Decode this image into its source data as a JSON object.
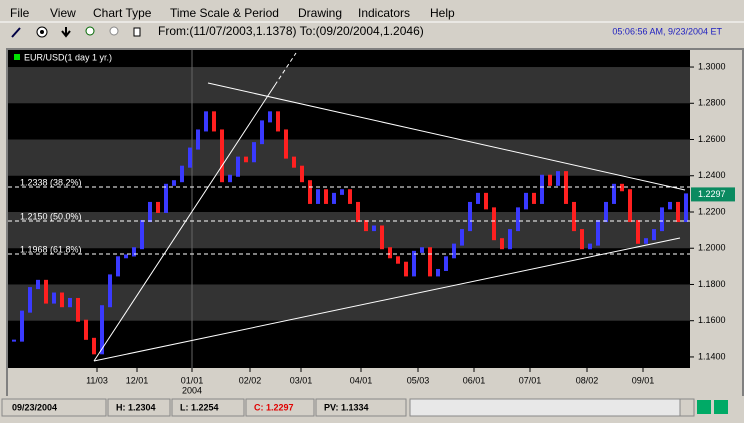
{
  "menu": [
    "File",
    "View",
    "Chart Type",
    "Time Scale & Period",
    "Drawing",
    "Indicators",
    "Help"
  ],
  "toolbar": {
    "range": "From:(11/07/2003,1.1378) To:(09/20/2004,1.2046)",
    "clock": "05:06:56 AM, 9/23/2004 ET"
  },
  "status": {
    "date": "09/23/2004",
    "high": "H: 1.2304",
    "low": "L: 1.2254",
    "close": "C: 1.2297",
    "pv": "PV: 1.1334"
  },
  "chart_data": {
    "type": "candlestick",
    "legend": "EUR/USD(1 day  1 yr.)",
    "up_color": "#3a3aff",
    "down_color": "#ff2020",
    "values": [
      1.149,
      1.165,
      1.178,
      1.182,
      1.17,
      1.175,
      1.168,
      1.172,
      1.16,
      1.15,
      1.142,
      1.168,
      1.185,
      1.195,
      1.196,
      1.2,
      1.215,
      1.225,
      1.22,
      1.235,
      1.237,
      1.245,
      1.255,
      1.265,
      1.275,
      1.265,
      1.237,
      1.24,
      1.25,
      1.248,
      1.258,
      1.27,
      1.275,
      1.265,
      1.25,
      1.245,
      1.237,
      1.225,
      1.232,
      1.225,
      1.23,
      1.232,
      1.225,
      1.215,
      1.21,
      1.212,
      1.2,
      1.195,
      1.192,
      1.185,
      1.198,
      1.2,
      1.185,
      1.188,
      1.195,
      1.202,
      1.21,
      1.225,
      1.23,
      1.222,
      1.205,
      1.2,
      1.21,
      1.222,
      1.23,
      1.225,
      1.24,
      1.235,
      1.242,
      1.225,
      1.21,
      1.2,
      1.202,
      1.215,
      1.225,
      1.235,
      1.232,
      1.215,
      1.203,
      1.205,
      1.21,
      1.222,
      1.225,
      1.215,
      1.2297
    ],
    "xlim": [
      -0.75,
      84.5
    ],
    "ylim": [
      1.1339,
      1.3094
    ],
    "yticks": [
      {
        "value": 1.3,
        "label": "1.3000"
      },
      {
        "value": 1.28,
        "label": "1.2800"
      },
      {
        "value": 1.26,
        "label": "1.2600"
      },
      {
        "value": 1.24,
        "label": "1.2400"
      },
      {
        "value": 1.22,
        "label": "1.2200"
      },
      {
        "value": 1.2,
        "label": "1.2000"
      },
      {
        "value": 1.18,
        "label": "1.1800"
      },
      {
        "value": 1.16,
        "label": "1.1600"
      },
      {
        "value": 1.14,
        "label": "1.1400"
      }
    ],
    "xticks": [
      {
        "value": 10.375,
        "label": "11/03"
      },
      {
        "value": 15.375,
        "label": "12/01"
      },
      {
        "value": 22.25,
        "label": "01/01"
      },
      {
        "value": 29.5,
        "label": "02/02"
      },
      {
        "value": 35.875,
        "label": "03/01"
      },
      {
        "value": 43.375,
        "label": "04/01"
      },
      {
        "value": 50.5,
        "label": "05/03"
      },
      {
        "value": 57.5,
        "label": "06/01"
      },
      {
        "value": 64.5,
        "label": "07/01"
      },
      {
        "value": 71.625,
        "label": "08/02"
      },
      {
        "value": 78.625,
        "label": "09/01"
      }
    ],
    "x_year": "2004",
    "fib_levels": [
      {
        "value": 1.2338,
        "label": "1.2338 (38.2%)"
      },
      {
        "value": 1.215,
        "label": "1.2150 (50.0%)"
      },
      {
        "value": 1.1968,
        "label": "1.1968 (61.8%)"
      }
    ],
    "last_price": 1.2297
  }
}
